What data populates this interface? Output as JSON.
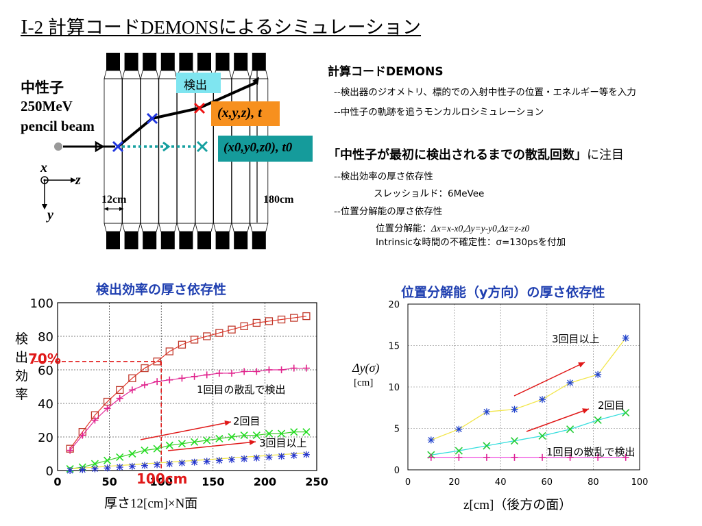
{
  "slide": {
    "title": "Ⅰ-2  計算コードDEMONSによるシミュレーション"
  },
  "detector": {
    "neutron_label": "中性子",
    "energy": "250MeV",
    "beam": "pencil beam",
    "detect_label": "検出",
    "pos_true": "(x,y,z), t",
    "pos_first": "(x0,y0,z0), t0",
    "axis_x": "x",
    "axis_z": "z",
    "axis_y": "y",
    "thickness": "12cm",
    "height": "180cm"
  },
  "description": {
    "code_title": "計算コードDEMONS",
    "bullet1": "--検出器のジオメトリ、標的での入射中性子の位置・エネルギー等を入力",
    "bullet2": "--中性子の軌跡を追うモンカルロシミュレーション",
    "focus_main": "「中性子が最初に検出されるまでの散乱回数」",
    "focus_suffix": "に注目",
    "bullet3": "--検出効率の厚さ依存性",
    "threshold": "スレッショルド：6MeVee",
    "bullet4": "--位置分解能の厚さ依存性",
    "resolution_label": "位置分解能：",
    "resolution_formula": "Δx=x-x0,Δy=y-y0,Δz=z-z0",
    "intrinsic": "Intrinsicな時間の不確定性：σ=130psを付加"
  },
  "chart_data": [
    {
      "type": "line",
      "title": "検出効率の厚さ依存性",
      "xlabel": "厚さ12[cm]×N面",
      "ylabel": "検出効率",
      "xlim": [
        0,
        250
      ],
      "ylim": [
        0,
        100
      ],
      "x_ticks": [
        "0",
        "50",
        "100",
        "150",
        "200",
        "250"
      ],
      "y_ticks": [
        "0",
        "20",
        "40",
        "60",
        "80",
        "100"
      ],
      "grid": true,
      "annotations": [
        "70%",
        "100cm",
        "1回目の散乱で検出",
        "2回目",
        "3回目以上"
      ],
      "series": [
        {
          "marker": "square",
          "color": "#c0392b",
          "x": [
            12,
            24,
            36,
            48,
            60,
            72,
            84,
            96,
            108,
            120,
            132,
            144,
            156,
            168,
            180,
            192,
            204,
            216,
            228,
            240
          ],
          "y": [
            13,
            23,
            33,
            41,
            48,
            55,
            61,
            65,
            71,
            75,
            78,
            80,
            82,
            84,
            86,
            88,
            89,
            90,
            91,
            92
          ]
        },
        {
          "name": "1回目の散乱で検出",
          "marker": "plus",
          "color": "#e0218a",
          "x": [
            12,
            24,
            36,
            48,
            60,
            72,
            84,
            96,
            108,
            120,
            132,
            144,
            156,
            168,
            180,
            192,
            204,
            216,
            228,
            240
          ],
          "y": [
            12,
            21,
            30,
            37,
            43,
            48,
            51,
            53,
            54,
            55,
            56,
            57,
            58,
            58,
            59,
            59,
            60,
            60,
            61,
            61
          ]
        },
        {
          "name": "2回目",
          "marker": "cross",
          "color": "#22dd22",
          "x": [
            12,
            24,
            36,
            48,
            60,
            72,
            84,
            96,
            108,
            120,
            132,
            144,
            156,
            168,
            180,
            192,
            204,
            216,
            228,
            240
          ],
          "y": [
            1,
            2,
            4,
            6,
            8,
            10,
            12,
            13,
            15,
            16,
            17,
            18,
            19,
            20,
            21,
            21,
            22,
            22,
            23,
            23
          ]
        },
        {
          "name": "3回目以上",
          "marker": "star",
          "color": "#2233cc",
          "x": [
            12,
            24,
            36,
            48,
            60,
            72,
            84,
            96,
            108,
            120,
            132,
            144,
            156,
            168,
            180,
            192,
            204,
            216,
            228,
            240
          ],
          "y": [
            0,
            0.5,
            1,
            1.5,
            2,
            2.5,
            3,
            3.5,
            4,
            4.5,
            5,
            5.5,
            6,
            6.5,
            7,
            7.5,
            8,
            8.5,
            9,
            9.5
          ]
        }
      ]
    },
    {
      "type": "line",
      "title": "位置分解能（y方向）の厚さ依存性",
      "xlabel": "z[cm]（後方の面）",
      "ylabel": "Δy(σ)",
      "yunit": "[cm]",
      "xlim": [
        0,
        100
      ],
      "ylim": [
        0,
        20
      ],
      "x_ticks": [
        "0",
        "20",
        "40",
        "60",
        "80",
        "100"
      ],
      "y_ticks": [
        "0",
        "5",
        "10",
        "15",
        "20"
      ],
      "grid": true,
      "annotations": [
        "3回目以上",
        "2回目",
        "1回目の散乱で検出"
      ],
      "series": [
        {
          "name": "3回目以上",
          "marker": "star",
          "line_color": "#f2e64a",
          "marker_color": "#2244cc",
          "x": [
            10,
            22,
            34,
            46,
            58,
            70,
            82,
            94
          ],
          "y": [
            3.6,
            4.9,
            7.0,
            7.3,
            8.5,
            10.5,
            11.5,
            15.9
          ]
        },
        {
          "name": "2回目",
          "marker": "cross",
          "line_color": "#33dddd",
          "marker_color": "#22cc33",
          "x": [
            10,
            22,
            34,
            46,
            58,
            70,
            82,
            94
          ],
          "y": [
            1.8,
            2.3,
            2.9,
            3.5,
            4.1,
            4.9,
            6.0,
            6.9
          ]
        },
        {
          "name": "1回目の散乱で検出",
          "marker": "plus",
          "line_color": "#ee44dd",
          "marker_color": "#dd2299",
          "x": [
            10,
            22,
            34,
            46,
            58,
            70,
            82,
            94
          ],
          "y": [
            1.5,
            1.5,
            1.5,
            1.5,
            1.5,
            1.5,
            1.5,
            1.5
          ]
        }
      ]
    }
  ]
}
